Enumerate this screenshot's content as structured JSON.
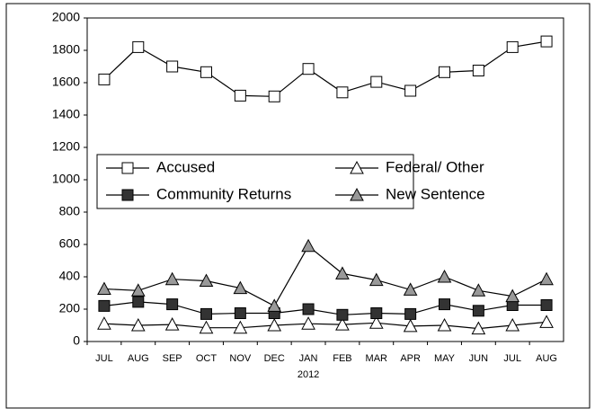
{
  "chart_data": {
    "type": "line",
    "categories": [
      "JUL",
      "AUG",
      "SEP",
      "OCT",
      "NOV",
      "DEC",
      "JAN",
      "FEB",
      "MAR",
      "APR",
      "MAY",
      "JUN",
      "JUL",
      "AUG"
    ],
    "xlabel": "2012",
    "series": [
      {
        "name": "Accused",
        "marker": "square",
        "color": "#ffffff",
        "values": [
          1620,
          1820,
          1700,
          1665,
          1520,
          1515,
          1685,
          1540,
          1605,
          1550,
          1665,
          1675,
          1820,
          1855
        ]
      },
      {
        "name": "Federal/ Other",
        "marker": "triangle",
        "color": "#ffffff",
        "values": [
          110,
          100,
          105,
          85,
          85,
          100,
          110,
          105,
          115,
          95,
          100,
          80,
          100,
          120
        ]
      },
      {
        "name": "Community Returns",
        "marker": "square",
        "color": "#333333",
        "values": [
          220,
          245,
          230,
          170,
          175,
          175,
          200,
          165,
          175,
          170,
          230,
          190,
          225,
          225
        ]
      },
      {
        "name": "New Sentence",
        "marker": "triangle",
        "color": "#999999",
        "values": [
          325,
          315,
          385,
          375,
          330,
          220,
          590,
          420,
          380,
          320,
          400,
          315,
          280,
          385
        ]
      }
    ],
    "ylim": [
      0,
      2000
    ],
    "yticks": [
      0,
      200,
      400,
      600,
      800,
      1000,
      1200,
      1400,
      1600,
      1800,
      2000
    ],
    "grid": false
  }
}
